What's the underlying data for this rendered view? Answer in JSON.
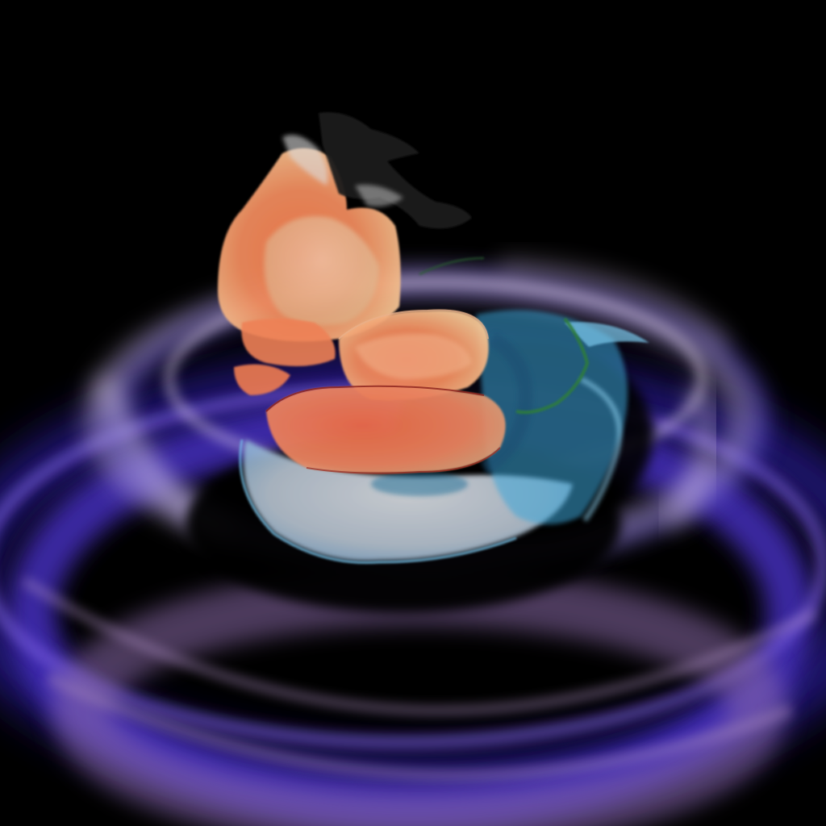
{
  "scene": {
    "kind": "volume-rendering",
    "background_color": "#000000",
    "layers": [
      {
        "name": "outer-ring-volume",
        "color": "#5a3fd6",
        "secondary_color": "#b79ad8"
      },
      {
        "name": "inner-haze-volume",
        "color": "#d8c8e4"
      },
      {
        "name": "core-shadow",
        "color": "#000000"
      },
      {
        "name": "translucent-base-volume",
        "color": "#cdd8e6"
      },
      {
        "name": "cyan-shell-volume",
        "color": "#53b7e6"
      },
      {
        "name": "orange-core-volume",
        "color": "#f07a4c",
        "secondary_color": "#f5c99a"
      },
      {
        "name": "dark-top-fringe",
        "color": "#1a1a1a"
      },
      {
        "name": "green-filament",
        "color": "#2e7d32"
      }
    ]
  }
}
